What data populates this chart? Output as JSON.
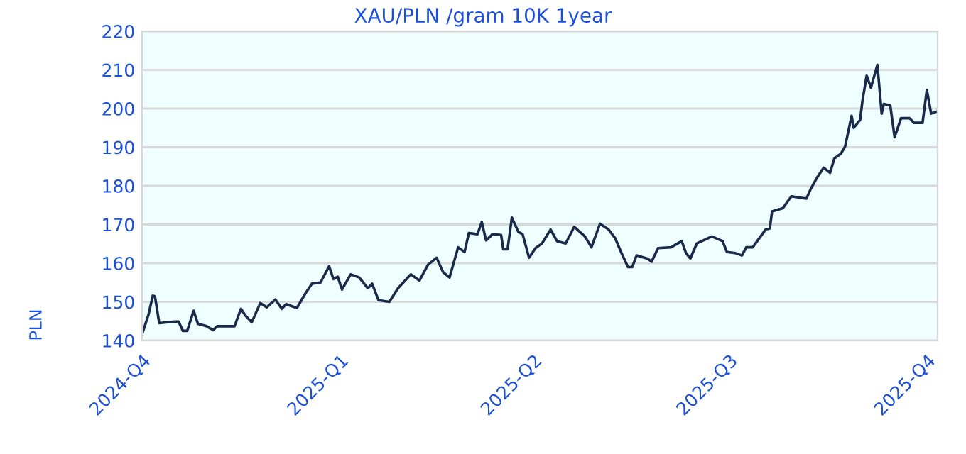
{
  "chart_data": {
    "type": "line",
    "title": "XAU/PLN /gram 10K 1year",
    "ylabel": "PLN",
    "x": [
      "2024-10-01",
      "2024-10-04",
      "2024-10-06",
      "2024-10-07",
      "2024-10-09",
      "2024-10-16",
      "2024-10-18",
      "2024-10-20",
      "2024-10-22",
      "2024-10-25",
      "2024-10-27",
      "2024-10-31",
      "2024-11-03",
      "2024-11-05",
      "2024-11-13",
      "2024-11-16",
      "2024-11-18",
      "2024-11-21",
      "2024-11-25",
      "2024-11-28",
      "2024-12-02",
      "2024-12-05",
      "2024-12-07",
      "2024-12-12",
      "2024-12-16",
      "2024-12-19",
      "2024-12-23",
      "2024-12-27",
      "2024-12-29",
      "2024-12-31",
      "2025-01-02",
      "2025-01-06",
      "2025-01-10",
      "2025-01-14",
      "2025-01-16",
      "2025-01-19",
      "2025-01-24",
      "2025-01-28",
      "2025-02-03",
      "2025-02-07",
      "2025-02-11",
      "2025-02-15",
      "2025-02-18",
      "2025-02-21",
      "2025-02-25",
      "2025-02-28",
      "2025-03-02",
      "2025-03-06",
      "2025-03-08",
      "2025-03-10",
      "2025-03-13",
      "2025-03-17",
      "2025-03-18",
      "2025-03-20",
      "2025-03-22",
      "2025-03-25",
      "2025-03-27",
      "2025-03-30",
      "2025-04-02",
      "2025-04-05",
      "2025-04-09",
      "2025-04-12",
      "2025-04-16",
      "2025-04-20",
      "2025-04-25",
      "2025-04-28",
      "2025-05-02",
      "2025-05-06",
      "2025-05-09",
      "2025-05-12",
      "2025-05-15",
      "2025-05-17",
      "2025-05-19",
      "2025-05-24",
      "2025-05-26",
      "2025-05-29",
      "2025-06-04",
      "2025-06-09",
      "2025-06-11",
      "2025-06-13",
      "2025-06-16",
      "2025-06-23",
      "2025-06-28",
      "2025-06-30",
      "2025-07-04",
      "2025-07-07",
      "2025-07-09",
      "2025-07-12",
      "2025-07-18",
      "2025-07-20",
      "2025-07-21",
      "2025-07-26",
      "2025-07-30",
      "2025-08-06",
      "2025-08-08",
      "2025-08-11",
      "2025-08-14",
      "2025-08-17",
      "2025-08-19",
      "2025-08-22",
      "2025-08-24",
      "2025-08-27",
      "2025-08-28",
      "2025-08-31",
      "2025-09-01",
      "2025-09-03",
      "2025-09-05",
      "2025-09-08",
      "2025-09-10",
      "2025-09-11",
      "2025-09-14",
      "2025-09-16",
      "2025-09-19",
      "2025-09-23",
      "2025-09-25",
      "2025-09-29",
      "2025-09-30",
      "2025-10-01",
      "2025-10-03",
      "2025-10-06"
    ],
    "series": [
      {
        "color": "#1a2a4a",
        "values": [
          141.6,
          146.7,
          151.6,
          151.4,
          144.5,
          144.9,
          144.9,
          142.5,
          142.5,
          147.7,
          144.3,
          143.7,
          142.7,
          143.7,
          143.7,
          148.2,
          146.5,
          144.7,
          149.7,
          148.6,
          150.6,
          148.2,
          149.4,
          148.4,
          152.2,
          154.7,
          155.0,
          159.2,
          155.9,
          156.5,
          153.2,
          157.1,
          156.3,
          153.5,
          154.7,
          150.4,
          150.0,
          153.5,
          157.1,
          155.5,
          159.6,
          161.4,
          157.7,
          156.3,
          164.1,
          162.9,
          167.8,
          167.5,
          170.6,
          165.9,
          167.5,
          167.3,
          163.6,
          163.6,
          171.8,
          168.1,
          167.5,
          161.4,
          163.9,
          165.1,
          168.7,
          165.7,
          165.1,
          169.4,
          166.9,
          164.1,
          170.2,
          168.7,
          166.5,
          162.6,
          159.0,
          159.0,
          162.0,
          161.2,
          160.4,
          163.9,
          164.1,
          165.7,
          162.6,
          161.2,
          165.1,
          166.9,
          165.7,
          162.9,
          162.6,
          162.0,
          164.1,
          164.1,
          168.7,
          169.0,
          173.4,
          174.2,
          177.3,
          176.7,
          179.2,
          182.2,
          184.7,
          183.4,
          187.1,
          188.3,
          190.2,
          198.1,
          195.0,
          197.1,
          201.8,
          208.5,
          205.4,
          211.3,
          198.7,
          201.2,
          200.8,
          192.6,
          197.5,
          197.5,
          196.3,
          196.3,
          200.6,
          204.8,
          198.7,
          199.3
        ]
      }
    ],
    "xlim": [
      "2024-10-01",
      "2025-10-06"
    ],
    "xticks": [
      {
        "value": "2024-10-01",
        "label": "2024-Q4"
      },
      {
        "value": "2025-01-01",
        "label": "2025-Q1"
      },
      {
        "value": "2025-04-01",
        "label": "2025-Q2"
      },
      {
        "value": "2025-07-01",
        "label": "2025-Q3"
      },
      {
        "value": "2025-10-01",
        "label": "2025-Q4"
      }
    ],
    "ylim": [
      140,
      220
    ],
    "yticks": [
      140,
      150,
      160,
      170,
      180,
      190,
      200,
      210,
      220
    ],
    "grid": "y",
    "marker": "none",
    "line_style": "solid"
  }
}
